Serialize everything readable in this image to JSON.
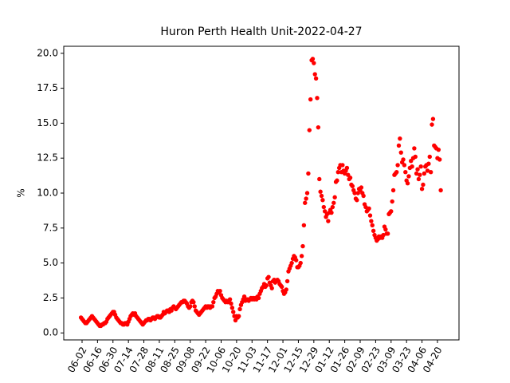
{
  "chart_data": {
    "type": "scatter",
    "title": "Huron Perth Health Unit-2022-04-27",
    "y_label": "%",
    "color": "#ff0000",
    "x": [
      "06-01",
      "06-02",
      "06-03",
      "06-04",
      "06-05",
      "06-06",
      "06-07",
      "06-08",
      "06-09",
      "06-10",
      "06-11",
      "06-12",
      "06-13",
      "06-14",
      "06-15",
      "06-16",
      "06-17",
      "06-18",
      "06-19",
      "06-20",
      "06-21",
      "06-22",
      "06-23",
      "06-24",
      "06-25",
      "06-26",
      "06-27",
      "06-28",
      "06-29",
      "06-30",
      "07-01",
      "07-02",
      "07-03",
      "07-04",
      "07-05",
      "07-06",
      "07-07",
      "07-08",
      "07-09",
      "07-10",
      "07-11",
      "07-12",
      "07-13",
      "07-14",
      "07-15",
      "07-16",
      "07-17",
      "07-18",
      "07-19",
      "07-20",
      "07-21",
      "07-22",
      "07-23",
      "07-24",
      "07-25",
      "07-26",
      "07-27",
      "07-28",
      "07-29",
      "07-30",
      "07-31",
      "08-01",
      "08-02",
      "08-03",
      "08-04",
      "08-05",
      "08-06",
      "08-07",
      "08-08",
      "08-09",
      "08-10",
      "08-11",
      "08-12",
      "08-13",
      "08-14",
      "08-15",
      "08-16",
      "08-17",
      "08-18",
      "08-19",
      "08-20",
      "08-21",
      "08-22",
      "08-23",
      "08-24",
      "08-25",
      "08-26",
      "08-27",
      "08-28",
      "08-29",
      "08-30",
      "08-31",
      "09-01",
      "09-02",
      "09-03",
      "09-04",
      "09-05",
      "09-06",
      "09-07",
      "09-08",
      "09-09",
      "09-10",
      "09-11",
      "09-12",
      "09-13",
      "09-14",
      "09-15",
      "09-16",
      "09-17",
      "09-18",
      "09-19",
      "09-20",
      "09-21",
      "09-22",
      "09-23",
      "09-24",
      "09-25",
      "09-26",
      "09-27",
      "09-28",
      "09-29",
      "09-30",
      "10-01",
      "10-02",
      "10-03",
      "10-04",
      "10-05",
      "10-06",
      "10-07",
      "10-08",
      "10-09",
      "10-10",
      "10-11",
      "10-12",
      "10-13",
      "10-14",
      "10-15",
      "10-16",
      "10-17",
      "10-18",
      "10-19",
      "10-20",
      "10-21",
      "10-22",
      "10-23",
      "10-24",
      "10-25",
      "10-26",
      "10-27",
      "10-28",
      "10-29",
      "10-30",
      "10-31",
      "11-01",
      "11-02",
      "11-03",
      "11-04",
      "11-05",
      "11-06",
      "11-07",
      "11-08",
      "11-09",
      "11-10",
      "11-11",
      "11-12",
      "11-13",
      "11-14",
      "11-15",
      "11-16",
      "11-17",
      "11-18",
      "11-19",
      "11-20",
      "11-21",
      "11-22",
      "11-23",
      "11-24",
      "11-25",
      "11-26",
      "11-27",
      "11-28",
      "11-29",
      "11-30",
      "12-01",
      "12-02",
      "12-03",
      "12-04",
      "12-05",
      "12-06",
      "12-07",
      "12-08",
      "12-09",
      "12-10",
      "12-11",
      "12-12",
      "12-13",
      "12-14",
      "12-15",
      "12-16",
      "12-17",
      "12-18",
      "12-19",
      "12-20",
      "12-21",
      "12-22",
      "12-23",
      "12-24",
      "12-25",
      "12-26",
      "12-27",
      "12-28",
      "12-29",
      "12-30",
      "12-31",
      "01-01",
      "01-02",
      "01-03",
      "01-04",
      "01-05",
      "01-06",
      "01-07",
      "01-08",
      "01-09",
      "01-10",
      "01-11",
      "01-12",
      "01-13",
      "01-14",
      "01-15",
      "01-16",
      "01-17",
      "01-18",
      "01-19",
      "01-20",
      "01-21",
      "01-22",
      "01-23",
      "01-24",
      "01-25",
      "01-26",
      "01-27",
      "01-28",
      "01-29",
      "01-30",
      "01-31",
      "02-01",
      "02-02",
      "02-03",
      "02-04",
      "02-05",
      "02-06",
      "02-07",
      "02-08",
      "02-09",
      "02-10",
      "02-11",
      "02-12",
      "02-13",
      "02-14",
      "02-15",
      "02-16",
      "02-17",
      "02-18",
      "02-19",
      "02-20",
      "02-21",
      "02-22",
      "02-23",
      "02-24",
      "02-25",
      "02-26",
      "02-27",
      "02-28",
      "03-01",
      "03-02",
      "03-03",
      "03-04",
      "03-05",
      "03-06",
      "03-07",
      "03-08",
      "03-09",
      "03-10",
      "03-11",
      "03-12",
      "03-13",
      "03-14",
      "03-15",
      "03-16",
      "03-17",
      "03-18",
      "03-19",
      "03-20",
      "03-21",
      "03-22",
      "03-23",
      "03-24",
      "03-25",
      "03-26",
      "03-27",
      "03-28",
      "03-29",
      "03-30",
      "03-31",
      "04-01",
      "04-02",
      "04-03",
      "04-04",
      "04-05",
      "04-06",
      "04-07",
      "04-08",
      "04-09",
      "04-10",
      "04-11",
      "04-12",
      "04-13",
      "04-14",
      "04-15",
      "04-16",
      "04-17",
      "04-18",
      "04-19",
      "04-20",
      "04-21",
      "04-22",
      "04-23"
    ],
    "values": [
      1.1,
      1.0,
      0.9,
      0.8,
      0.7,
      0.7,
      0.8,
      0.9,
      1.0,
      1.1,
      1.2,
      1.1,
      1.0,
      0.9,
      0.8,
      0.7,
      0.6,
      0.5,
      0.5,
      0.6,
      0.6,
      0.7,
      0.7,
      0.8,
      1.0,
      1.1,
      1.2,
      1.3,
      1.4,
      1.5,
      1.5,
      1.3,
      1.1,
      1.0,
      0.9,
      0.8,
      0.7,
      0.7,
      0.6,
      0.6,
      0.7,
      0.7,
      0.6,
      0.8,
      1.0,
      1.2,
      1.3,
      1.4,
      1.3,
      1.4,
      1.2,
      1.1,
      1.0,
      0.9,
      0.8,
      0.7,
      0.6,
      0.7,
      0.8,
      0.9,
      0.9,
      1.0,
      1.0,
      0.9,
      1.0,
      1.1,
      1.1,
      1.0,
      1.1,
      1.2,
      1.2,
      1.1,
      1.1,
      1.2,
      1.3,
      1.5,
      1.4,
      1.5,
      1.6,
      1.6,
      1.5,
      1.7,
      1.6,
      1.8,
      1.9,
      1.8,
      1.7,
      1.8,
      1.9,
      2.0,
      2.1,
      2.2,
      2.2,
      2.3,
      2.3,
      2.2,
      2.1,
      1.9,
      1.8,
      1.9,
      2.2,
      2.3,
      2.2,
      1.9,
      1.6,
      1.5,
      1.4,
      1.3,
      1.4,
      1.5,
      1.6,
      1.7,
      1.8,
      1.9,
      1.8,
      1.9,
      1.9,
      1.8,
      1.9,
      1.9,
      2.2,
      2.5,
      2.6,
      2.8,
      3.0,
      2.9,
      3.0,
      2.7,
      2.5,
      2.4,
      2.3,
      2.2,
      2.3,
      2.2,
      2.3,
      2.4,
      2.1,
      1.8,
      1.5,
      1.2,
      0.9,
      1.2,
      1.1,
      1.2,
      1.7,
      2.0,
      2.2,
      2.4,
      2.6,
      2.3,
      2.4,
      2.4,
      2.3,
      2.4,
      2.5,
      2.4,
      2.5,
      2.4,
      2.5,
      2.4,
      2.6,
      2.5,
      2.8,
      3.0,
      3.2,
      3.3,
      3.5,
      3.3,
      3.4,
      3.9,
      4.0,
      3.6,
      3.4,
      3.2,
      3.7,
      3.8,
      3.6,
      3.7,
      3.8,
      3.7,
      3.5,
      3.4,
      3.3,
      3.0,
      2.8,
      2.9,
      3.1,
      3.7,
      4.4,
      4.6,
      4.8,
      5.0,
      5.3,
      5.5,
      5.4,
      5.2,
      4.7,
      4.7,
      4.8,
      5.0,
      5.5,
      6.2,
      7.7,
      9.3,
      9.6,
      10.0,
      11.4,
      14.5,
      16.7,
      19.5,
      19.6,
      19.3,
      18.5,
      18.2,
      16.8,
      14.7,
      11.0,
      10.1,
      9.8,
      9.5,
      9.0,
      8.7,
      8.3,
      8.5,
      8.0,
      8.6,
      8.8,
      8.6,
      9.0,
      9.3,
      9.7,
      10.8,
      10.9,
      11.5,
      11.8,
      12.0,
      11.5,
      12.0,
      11.6,
      11.4,
      11.6,
      11.8,
      11.3,
      11.0,
      11.1,
      10.6,
      10.5,
      10.2,
      10.0,
      9.6,
      9.5,
      10.0,
      10.3,
      10.2,
      10.4,
      10.0,
      9.8,
      9.2,
      9.0,
      8.7,
      8.8,
      8.9,
      8.4,
      8.0,
      7.7,
      7.3,
      7.0,
      6.8,
      6.6,
      6.7,
      6.9,
      6.8,
      6.9,
      6.8,
      7.0,
      7.6,
      7.4,
      7.1,
      7.1,
      8.5,
      8.6,
      8.7,
      9.4,
      10.2,
      11.3,
      11.4,
      11.5,
      12.0,
      13.4,
      13.9,
      12.9,
      12.2,
      12.4,
      12.0,
      11.5,
      10.9,
      10.7,
      11.2,
      11.8,
      12.3,
      11.9,
      12.5,
      13.2,
      12.6,
      11.4,
      11.7,
      11.0,
      11.3,
      11.9,
      10.3,
      10.6,
      11.4,
      11.9,
      12.0,
      11.6,
      12.1,
      12.6,
      11.5,
      14.9,
      15.3,
      13.4,
      13.3,
      13.2,
      12.5,
      13.1,
      12.4,
      10.2
    ],
    "xticks": [
      "06-02",
      "06-16",
      "06-30",
      "07-14",
      "07-28",
      "08-11",
      "08-25",
      "09-08",
      "09-22",
      "10-06",
      "10-20",
      "11-03",
      "11-17",
      "12-01",
      "12-15",
      "12-29",
      "01-12",
      "01-26",
      "02-09",
      "02-23",
      "03-09",
      "03-23",
      "04-06",
      "04-20"
    ],
    "ylim": [
      -0.5,
      20.5
    ],
    "yticks": [
      {
        "value": 0,
        "label": "0.0"
      },
      {
        "value": 2.5,
        "label": "2.5"
      },
      {
        "value": 5,
        "label": "5.0"
      },
      {
        "value": 7.5,
        "label": "7.5"
      },
      {
        "value": 10,
        "label": "10.0"
      },
      {
        "value": 12.5,
        "label": "12.5"
      },
      {
        "value": 15,
        "label": "15.0"
      },
      {
        "value": 17.5,
        "label": "17.5"
      },
      {
        "value": 20,
        "label": "20.0"
      }
    ]
  }
}
